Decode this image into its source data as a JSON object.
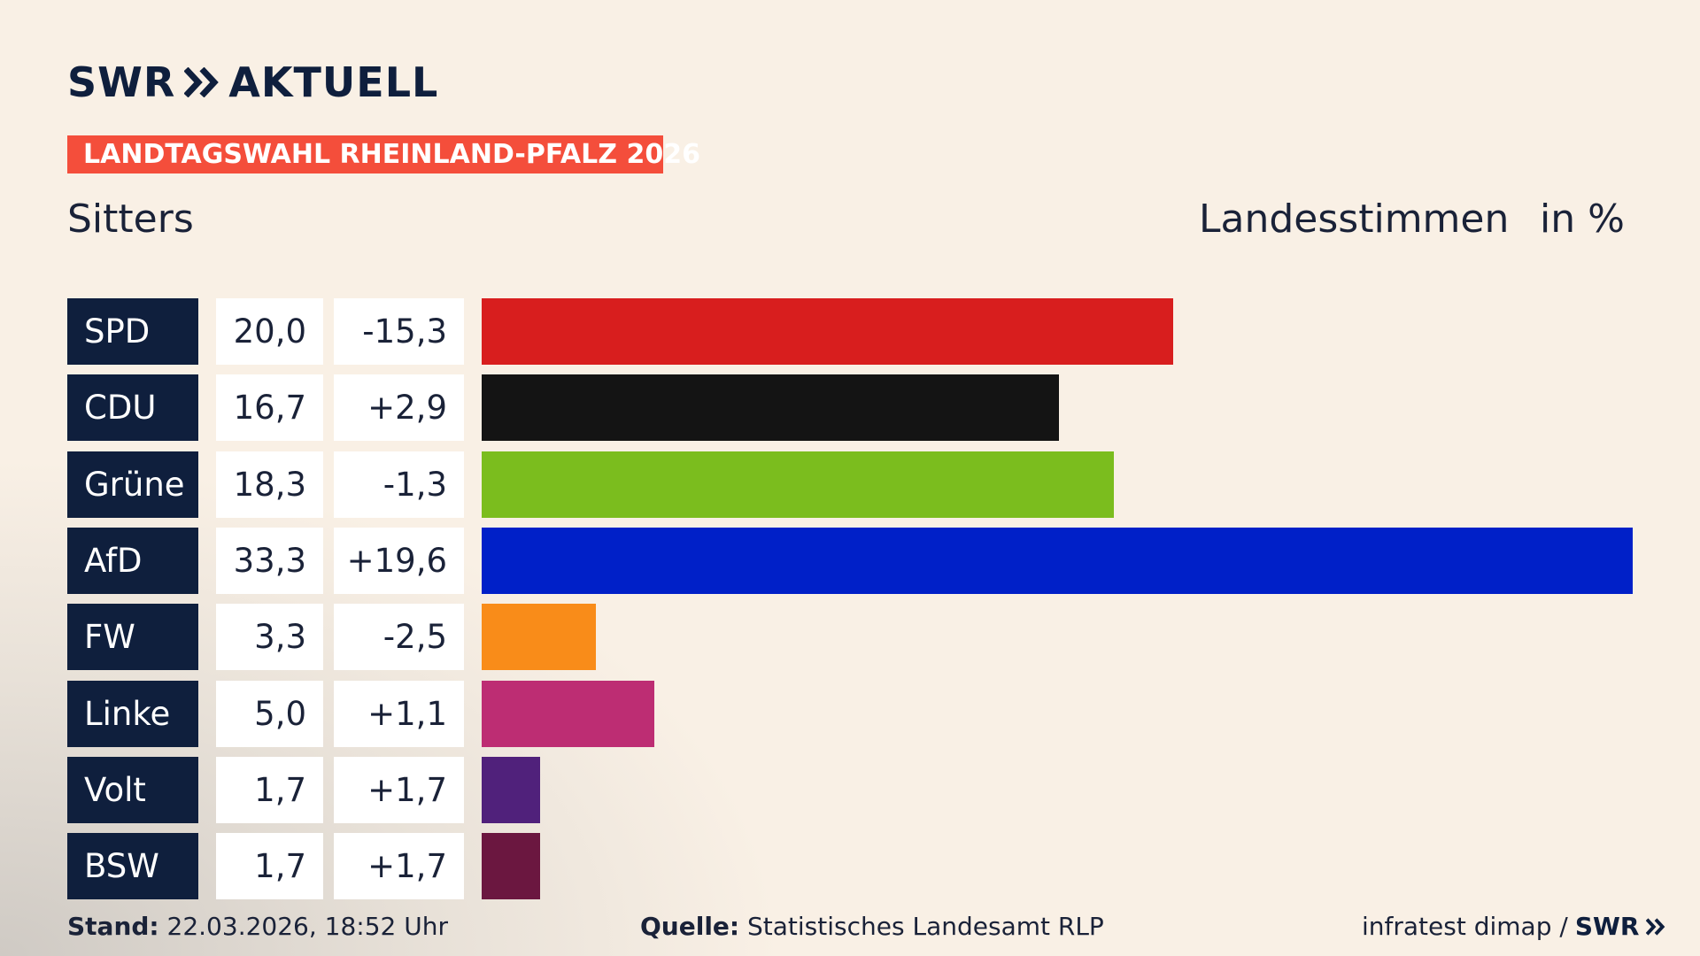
{
  "brand": {
    "logo": "SWR",
    "section": "AKTUELL"
  },
  "chart_data": {
    "type": "bar",
    "orientation": "horizontal",
    "title": "LANDTAGSWAHL RHEINLAND-PFALZ 2026",
    "subtitle": "Sitters",
    "value_heading": "Landesstimmen",
    "unit": "in %",
    "categories": [
      "SPD",
      "CDU",
      "Grüne",
      "AfD",
      "FW",
      "Linke",
      "Volt",
      "BSW"
    ],
    "values": [
      20.0,
      16.7,
      18.3,
      33.3,
      3.3,
      5.0,
      1.7,
      1.7
    ],
    "value_labels": [
      "20,0",
      "16,7",
      "18,3",
      "33,3",
      "3,3",
      "5,0",
      "1,7",
      "1,7"
    ],
    "changes": [
      {
        "value": -15.3,
        "label": "-15,3"
      },
      {
        "value": 2.9,
        "label": "+2,9"
      },
      {
        "value": -1.3,
        "label": "-1,3"
      },
      {
        "value": 19.6,
        "label": "+19,6"
      },
      {
        "value": -2.5,
        "label": "-2,5"
      },
      {
        "value": 1.1,
        "label": "+1,1"
      },
      {
        "value": 1.7,
        "label": "+1,7"
      },
      {
        "value": 1.7,
        "label": "+1,7"
      }
    ],
    "colors": [
      "#d81e1e",
      "#141414",
      "#7bbd1e",
      "#0020c8",
      "#f98c19",
      "#bd2d73",
      "#50217b",
      "#6b1740"
    ]
  },
  "footer": {
    "stand_label": "Stand:",
    "stand": "22.03.2026, 18:52 Uhr",
    "source_label": "Quelle:",
    "source": "Statistisches Landesamt RLP",
    "credit": "infratest dimap /",
    "credit_logo": "SWR"
  }
}
